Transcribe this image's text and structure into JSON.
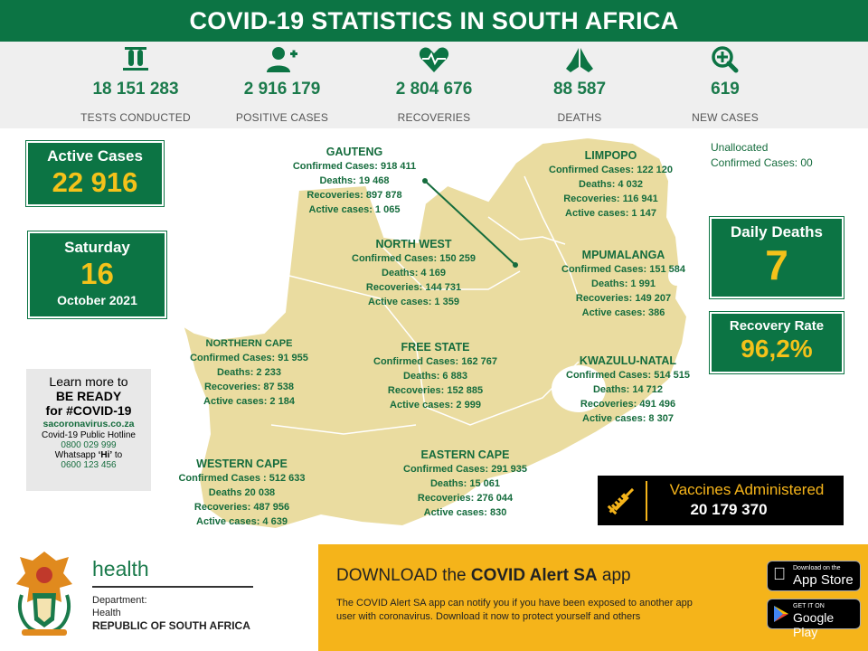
{
  "title": "COVID-19 STATISTICS IN SOUTH AFRICA",
  "stats": [
    {
      "icon": "test-tubes-icon",
      "value": "18 151 283",
      "label": "TESTS CONDUCTED"
    },
    {
      "icon": "add-person-icon",
      "value": "2 916 179",
      "label": "POSITIVE CASES"
    },
    {
      "icon": "heart-pulse-icon",
      "value": "2 804 676",
      "label": "RECOVERIES"
    },
    {
      "icon": "praying-hands-icon",
      "value": "88 587",
      "label": "DEATHS"
    },
    {
      "icon": "zoom-plus-icon",
      "value": "619",
      "label": "NEW CASES"
    }
  ],
  "active_cases": {
    "label": "Active Cases",
    "value": "22 916"
  },
  "date": {
    "weekday": "Saturday",
    "day": "16",
    "month_year": "October 2021"
  },
  "unallocated": {
    "line1": "Unallocated",
    "line2": "Confirmed Cases: 00"
  },
  "daily_deaths": {
    "label": "Daily Deaths",
    "value": "7"
  },
  "recovery_rate": {
    "label": "Recovery Rate",
    "value": "96,2%"
  },
  "vaccines": {
    "label": "Vaccines Administered",
    "value": "20 179 370"
  },
  "be_ready": {
    "line1": "Learn more to",
    "line2": "BE READY",
    "line3": "for #COVID-19",
    "website": "sacoronavirus.co.za",
    "hotline_label": "Covid-19 Public Hotline",
    "hotline_number": "0800 029 999",
    "whatsapp_pre": "Whatsapp ",
    "whatsapp_hi": "‘Hi’",
    "whatsapp_post": " to",
    "whatsapp_number": "0600 123 456"
  },
  "provinces": {
    "gauteng": {
      "name": "GAUTENG",
      "lines": [
        "Confirmed Cases: 918 411",
        "Deaths: 19 468",
        "Recoveries: 897 878",
        "Active cases: 1 065"
      ]
    },
    "limpopo": {
      "name": "LIMPOPO",
      "lines": [
        "Confirmed Cases: 122 120",
        "Deaths:  4 032",
        "Recoveries: 116 941",
        "Active cases: 1 147"
      ]
    },
    "north_west": {
      "name": "NORTH WEST",
      "lines": [
        "Confirmed Cases: 150 259",
        "Deaths: 4 169",
        "Recoveries: 144 731",
        "Active cases: 1 359"
      ]
    },
    "mpumalanga": {
      "name": "MPUMALANGA",
      "lines": [
        "Confirmed Cases: 151 584",
        "Deaths:  1 991",
        "Recoveries: 149 207",
        "Active cases: 386"
      ]
    },
    "northern_cape": {
      "name": "NORTHERN CAPE",
      "lines": [
        "Confirmed Cases:  91 955",
        "Deaths: 2 233",
        "Recoveries: 87 538",
        "Active cases: 2 184"
      ]
    },
    "free_state": {
      "name": "FREE STATE",
      "lines": [
        "Confirmed Cases: 162 767",
        "Deaths: 6 883",
        "Recoveries:  152 885",
        "Active cases: 2 999"
      ]
    },
    "kwazulu_natal": {
      "name": "KWAZULU-NATAL",
      "lines": [
        "Confirmed Cases: 514 515",
        "Deaths: 14 712",
        "Recoveries: 491 496",
        "Active cases: 8 307"
      ]
    },
    "western_cape": {
      "name": "WESTERN CAPE",
      "lines": [
        "Confirmed Cases : 512 633",
        "Deaths 20 038",
        "Recoveries: 487 956",
        "Active cases:  4 639"
      ]
    },
    "eastern_cape": {
      "name": "EASTERN CAPE",
      "lines": [
        "Confirmed Cases: 291 935",
        "Deaths: 15 061",
        "Recoveries: 276 044",
        "Active cases: 830"
      ]
    }
  },
  "department": {
    "health": "health",
    "line1": "Department:",
    "line2": "Health",
    "line3": "REPUBLIC OF SOUTH AFRICA"
  },
  "app_banner": {
    "title_pre": "DOWNLOAD the ",
    "title_bold": "COVID Alert SA",
    "title_post": " app",
    "body_line1": "The COVID Alert SA app can notify you if you have been exposed to another app",
    "body_line2": "user with coronavirus. Download it now to protect yourself and others"
  },
  "stores": {
    "app_store_small": "Download on the",
    "app_store_big": "App Store",
    "google_small": "GET IT ON",
    "google_big": "Google Play"
  },
  "colors": {
    "green": "#0c7444",
    "yellow": "#f4c21a",
    "map": "#eadca0",
    "banner_yellow": "#f5b41a"
  }
}
